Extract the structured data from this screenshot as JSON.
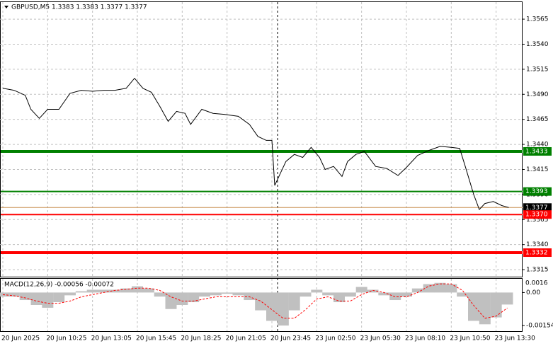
{
  "chart_data": [
    {
      "type": "line",
      "title": "GBPUSD,M5  1.3383 1.3383 1.3377 1.3377",
      "x": [
        0,
        8,
        16,
        20,
        26,
        32,
        40,
        48,
        56,
        64,
        72,
        80,
        88,
        94,
        100,
        106,
        112,
        118,
        124,
        130,
        134,
        142,
        150,
        158,
        168,
        176,
        182,
        188,
        192,
        194,
        198,
        202,
        208,
        214,
        220,
        226,
        230,
        236,
        242,
        246,
        252,
        258,
        266,
        274,
        282,
        288,
        296,
        304,
        312,
        320,
        326,
        330,
        336,
        340,
        344,
        350,
        356,
        361
      ],
      "series": [
        {
          "color": "#000000",
          "values": [
            1.3496,
            1.3494,
            1.3489,
            1.3475,
            1.3466,
            1.3475,
            1.3475,
            1.3491,
            1.3494,
            1.3493,
            1.3494,
            1.3494,
            1.3496,
            1.3506,
            1.3496,
            1.3492,
            1.3478,
            1.3463,
            1.3473,
            1.3471,
            1.346,
            1.3475,
            1.3471,
            1.347,
            1.3468,
            1.346,
            1.3448,
            1.3444,
            1.3444,
            1.3399,
            1.3411,
            1.3423,
            1.343,
            1.3427,
            1.3437,
            1.3427,
            1.3415,
            1.3418,
            1.3408,
            1.3423,
            1.343,
            1.3433,
            1.3418,
            1.3416,
            1.3409,
            1.3417,
            1.3429,
            1.3434,
            1.3438,
            1.3437,
            1.3436,
            1.3418,
            1.339,
            1.3375,
            1.3381,
            1.3383,
            1.3379,
            1.3377
          ]
        }
      ],
      "xlim": [
        0,
        367
      ],
      "xticks": [
        {
          "value": 0,
          "label": "20 Jun 2025"
        },
        {
          "value": 32,
          "label": "20 Jun 10:25"
        },
        {
          "value": 64,
          "label": "20 Jun 13:05"
        },
        {
          "value": 96,
          "label": "20 Jun 15:45"
        },
        {
          "value": 128,
          "label": "20 Jun 18:25"
        },
        {
          "value": 160,
          "label": "20 Jun 21:05"
        },
        {
          "value": 192,
          "label": "20 Jun 23:45"
        },
        {
          "value": 224,
          "label": "23 Jun 02:50"
        },
        {
          "value": 256,
          "label": "23 Jun 05:30"
        },
        {
          "value": 288,
          "label": "23 Jun 08:10"
        },
        {
          "value": 320,
          "label": "23 Jun 10:50"
        },
        {
          "value": 352,
          "label": "23 Jun 13:30"
        }
      ],
      "ylim": [
        1.3308,
        1.3582
      ],
      "yticks": [
        1.3565,
        {
          "value": 1.354,
          "label": "1.3540"
        },
        1.3515,
        {
          "value": 1.349,
          "label": "1.3490"
        },
        1.3465,
        {
          "value": 1.344,
          "label": "1.3440"
        },
        1.3415,
        {
          "value": 1.339,
          "label": "1.3390"
        },
        1.3365,
        {
          "value": 1.334,
          "label": "1.3340"
        },
        1.3315
      ],
      "grid": true,
      "levels": {
        "values": [
          1.3433,
          1.3393,
          1.3377,
          1.337,
          1.3332
        ],
        "value_labels": [
          "1.3433",
          "1.3393",
          "1.3377",
          "1.3370",
          "1.3332"
        ],
        "colors": [
          "#008000",
          "#008000",
          "#c89050",
          "#ff0000",
          "#ff0000"
        ]
      }
    },
    {
      "type": "macd",
      "title": "MACD(12,26,9) -0.00056 -0.00072",
      "x": [
        0,
        8,
        16,
        24,
        32,
        40,
        48,
        56,
        64,
        72,
        80,
        88,
        96,
        104,
        112,
        120,
        128,
        136,
        144,
        152,
        160,
        168,
        176,
        184,
        192,
        200,
        208,
        216,
        224,
        232,
        240,
        248,
        256,
        264,
        272,
        280,
        288,
        296,
        304,
        312,
        320,
        328,
        336,
        344,
        352,
        360
      ],
      "series": [
        {
          "type": "bar",
          "color": "#c0c0c0",
          "values": [
            -0.00019,
            -0.00019,
            -0.00035,
            -0.00058,
            -0.00071,
            -0.00045,
            -0.00013,
            6e-05,
            0.00013,
            0.00013,
            0.00013,
            0.00019,
            0.00029,
            0.00019,
            -0.00019,
            -0.00077,
            -0.00058,
            -0.00045,
            -0.00019,
            -0.00013,
            -6e-05,
            -0.00013,
            -0.00035,
            -0.00083,
            -0.00132,
            -0.00154,
            -0.00083,
            -0.00019,
            0.00013,
            -0.00013,
            -0.00045,
            -0.00019,
            0.00026,
            0.00013,
            -0.00013,
            -0.00035,
            -0.00019,
            0.00019,
            0.00039,
            0.00045,
            0.00039,
            -0.00019,
            -0.00132,
            -0.00148,
            -0.00116,
            -0.00056
          ]
        },
        {
          "type": "line",
          "color": "#ff0000",
          "values": [
            -0.0001,
            -0.00015,
            -0.00025,
            -0.0004,
            -0.0005,
            -0.0005,
            -0.0004,
            -0.0002,
            -0.0001,
            0.0,
            0.0001,
            0.00015,
            0.0002,
            0.0002,
            0.0001,
            -0.0002,
            -0.0004,
            -0.0004,
            -0.0003,
            -0.0002,
            -0.0002,
            -0.0002,
            -0.0002,
            -0.0004,
            -0.0008,
            -0.0012,
            -0.0012,
            -0.0008,
            -0.0003,
            -0.0002,
            -0.0004,
            -0.0004,
            -0.0001,
            0.0001,
            0.0,
            -0.0002,
            -0.0002,
            0.0,
            0.0003,
            0.0004,
            0.0004,
            0.0001,
            -0.0006,
            -0.0012,
            -0.0011,
            -0.00072
          ]
        }
      ],
      "ylim": [
        -0.0018,
        0.00064
      ],
      "yticks": [
        {
          "value": 0,
          "label": "0.00"
        },
        -0.00154
      ],
      "scale_label": "0.0016"
    }
  ]
}
